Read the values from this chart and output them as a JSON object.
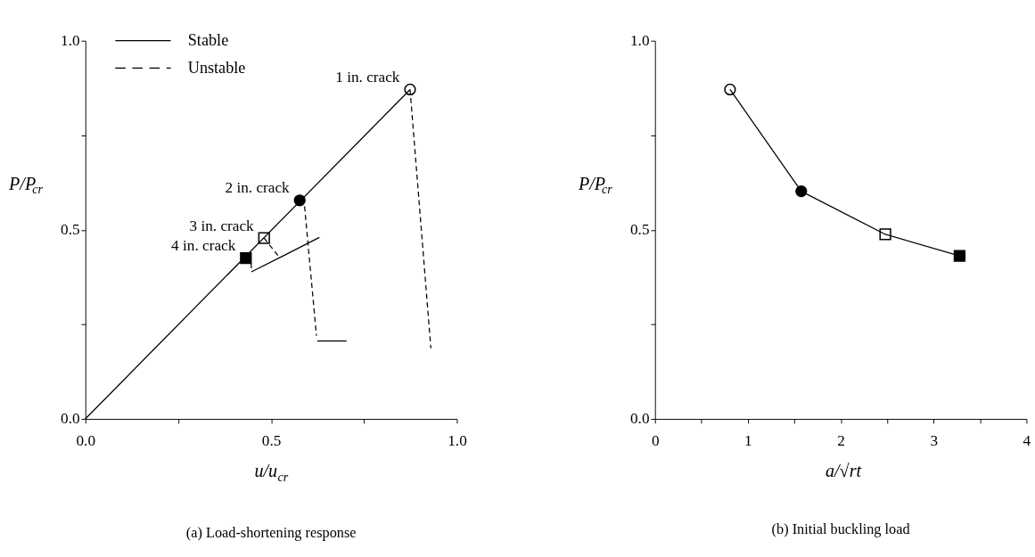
{
  "chart_data": [
    {
      "type": "line",
      "title": "(a)  Load-shortening response",
      "xlabel": "u/u$_{cr}$",
      "ylabel": "P/P$_{cr}$",
      "xlim": [
        0,
        1
      ],
      "ylim": [
        0,
        1
      ],
      "xticks": [
        {
          "value": 0,
          "label": "0.0"
        },
        {
          "value": 0.25,
          "label": null
        },
        {
          "value": 0.5,
          "label": "0.5"
        },
        {
          "value": 0.75,
          "label": null
        },
        {
          "value": 1,
          "label": "1.0"
        }
      ],
      "yticks": [
        {
          "value": 0,
          "label": "0.0"
        },
        {
          "value": 0.25,
          "label": null
        },
        {
          "value": 0.5,
          "label": "0.5"
        },
        {
          "value": 0.75,
          "label": null
        },
        {
          "value": 1,
          "label": "1.0"
        }
      ],
      "grid": false,
      "legend": "top left",
      "series": [
        {
          "name": "Stable",
          "line_style": "solid",
          "color": "#000000",
          "x": [
            0,
            0.874,
            null,
            0.447,
            0.53,
            0.63,
            null,
            0.624,
            0.703
          ],
          "values": [
            0,
            0.871,
            null,
            0.389,
            0.43,
            0.48,
            null,
            0.206,
            0.206
          ]
        },
        {
          "name": "Unstable",
          "line_style": "dashed",
          "color": "#000000",
          "x": [
            0.874,
            0.93,
            null,
            0.59,
            0.622,
            null,
            0.481,
            0.52,
            null,
            0.446,
            0.447
          ],
          "values": [
            0.871,
            0.187,
            null,
            0.562,
            0.22,
            null,
            0.478,
            0.43,
            null,
            0.412,
            0.395
          ]
        },
        {
          "type": "scatter",
          "marker": "circle",
          "color": "#ffffff",
          "x": [
            0.874
          ],
          "values": [
            0.871
          ]
        },
        {
          "type": "scatter",
          "marker": "circle",
          "color": "#000000",
          "x": [
            0.577
          ],
          "values": [
            0.578
          ]
        },
        {
          "type": "scatter",
          "marker": "square",
          "color": "#ffffff",
          "x": [
            0.481
          ],
          "values": [
            0.478
          ]
        },
        {
          "type": "scatter",
          "marker": "square",
          "color": "#000000",
          "x": [
            0.432
          ],
          "values": [
            0.425
          ]
        }
      ],
      "annotations": [
        {
          "text": "1 in. crack",
          "x": 0.874,
          "y": 0.871
        },
        {
          "text": "2 in. crack",
          "x": 0.577,
          "y": 0.578
        },
        {
          "text": "3 in. crack",
          "x": 0.481,
          "y": 0.478
        },
        {
          "text": "4 in. crack",
          "x": 0.432,
          "y": 0.425
        }
      ]
    },
    {
      "type": "line",
      "title": "(b)  Initial buckling load",
      "xlabel": "a/√rt",
      "ylabel": "P/P$_{cr}$",
      "xlim": [
        0,
        4
      ],
      "ylim": [
        0,
        1
      ],
      "xticks": [
        0,
        {
          "value": 0.5,
          "label": null
        },
        1,
        {
          "value": 1.5,
          "label": null
        },
        2,
        {
          "value": 2.5,
          "label": null
        },
        3,
        {
          "value": 3.5,
          "label": null
        },
        4
      ],
      "yticks": [
        {
          "value": 0,
          "label": "0.0"
        },
        {
          "value": 0.25,
          "label": null
        },
        {
          "value": 0.5,
          "label": "0.5"
        },
        {
          "value": 0.75,
          "label": null
        },
        {
          "value": 1,
          "label": "1.0"
        }
      ],
      "grid": false,
      "series": [
        {
          "line_style": "solid",
          "color": "#000000",
          "x": [
            0.808,
            1.575,
            2.48,
            3.28
          ],
          "values": [
            0.871,
            0.602,
            0.488,
            0.431
          ]
        },
        {
          "type": "scatter",
          "marker": "circle",
          "color": "#ffffff",
          "x": [
            0.808
          ],
          "values": [
            0.871
          ]
        },
        {
          "type": "scatter",
          "marker": "circle",
          "color": "#000000",
          "x": [
            1.575
          ],
          "values": [
            0.602
          ]
        },
        {
          "type": "scatter",
          "marker": "square",
          "color": "#ffffff",
          "x": [
            2.48
          ],
          "values": [
            0.488
          ]
        },
        {
          "type": "scatter",
          "marker": "square",
          "color": "#000000",
          "x": [
            3.28
          ],
          "values": [
            0.431
          ]
        }
      ]
    }
  ]
}
